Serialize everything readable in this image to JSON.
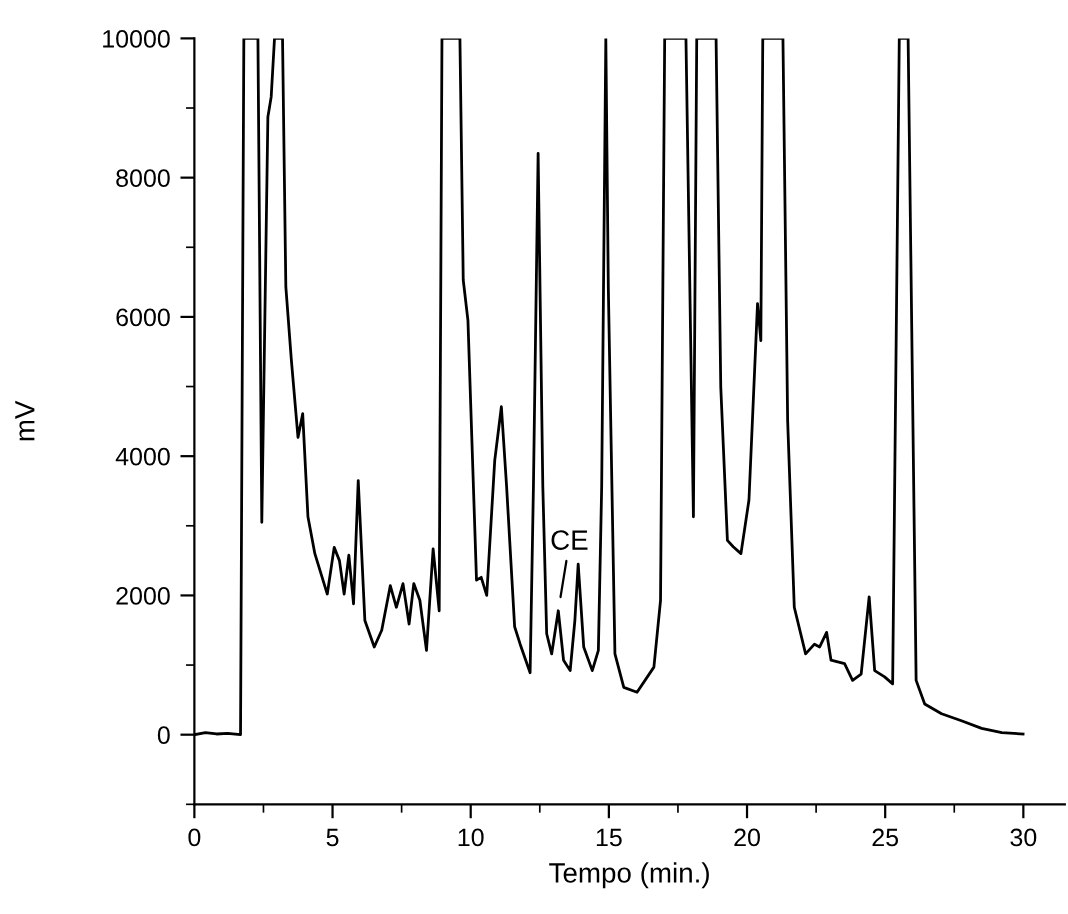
{
  "chart_data": {
    "type": "line",
    "xlabel": "Tempo (min.)",
    "ylabel": "mV",
    "xlim": [
      0,
      31.5
    ],
    "ylim": [
      -1000,
      10000
    ],
    "xticks": [
      0,
      {
        "value": 2.5,
        "label": null
      },
      5,
      {
        "value": 7.5,
        "label": null
      },
      10,
      {
        "value": 12.5,
        "label": null
      },
      15,
      {
        "value": 17.5,
        "label": null
      },
      20,
      {
        "value": 22.5,
        "label": null
      },
      25,
      {
        "value": 27.5,
        "label": null
      },
      30
    ],
    "yticks": [
      {
        "value": -1000,
        "label": null
      },
      0,
      {
        "value": 1000,
        "label": null
      },
      2000,
      {
        "value": 3000,
        "label": null
      },
      4000,
      {
        "value": 5000,
        "label": null
      },
      6000,
      {
        "value": 7000,
        "label": null
      },
      8000,
      {
        "value": 9000,
        "label": null
      },
      10000
    ],
    "grid": false,
    "legend": false,
    "marker": "none",
    "line_style": "solid",
    "annotations": [
      {
        "text": "CE",
        "x": 13.17,
        "y": 1780
      }
    ],
    "series": [
      {
        "color": "#000000",
        "x": [
          0,
          0.4,
          0.8,
          1.2,
          1.67,
          1.79,
          2.3,
          2.44,
          2.66,
          2.78,
          2.9,
          3.19,
          3.31,
          3.51,
          3.75,
          3.92,
          4.11,
          4.36,
          4.81,
          5.06,
          5.25,
          5.42,
          5.59,
          5.76,
          5.93,
          6.17,
          6.51,
          6.78,
          7.09,
          7.31,
          7.55,
          7.77,
          7.94,
          8.16,
          8.4,
          8.64,
          8.86,
          8.96,
          9.61,
          9.73,
          9.9,
          10.21,
          10.38,
          10.58,
          10.87,
          11.11,
          11.3,
          11.59,
          11.79,
          12.15,
          12.27,
          12.44,
          12.61,
          12.75,
          12.93,
          13.17,
          13.36,
          13.6,
          13.77,
          13.89,
          14.09,
          14.4,
          14.62,
          14.74,
          14.89,
          14.98,
          15.22,
          15.54,
          16.02,
          16.63,
          16.87,
          17.02,
          17.79,
          18.06,
          18.18,
          18.88,
          19.05,
          19.29,
          19.5,
          19.78,
          20.07,
          20.38,
          20.5,
          20.57,
          21.3,
          21.47,
          21.71,
          22.12,
          22.44,
          22.63,
          22.88,
          23.04,
          23.53,
          23.82,
          24.13,
          24.42,
          24.62,
          24.98,
          25.27,
          25.51,
          25.83,
          26.12,
          26.43,
          27.04,
          27.76,
          28.49,
          29.22,
          29.99
        ],
        "values": [
          0,
          30,
          10,
          20,
          0,
          10000,
          10000,
          3050,
          8870,
          9160,
          10000,
          10000,
          6430,
          5380,
          4270,
          4610,
          3130,
          2600,
          2020,
          2690,
          2500,
          2020,
          2580,
          1880,
          3650,
          1640,
          1260,
          1500,
          2140,
          1830,
          2170,
          1590,
          2170,
          1930,
          1210,
          2670,
          1780,
          10000,
          10000,
          6530,
          5950,
          2220,
          2260,
          2000,
          3940,
          4710,
          3560,
          1550,
          1300,
          890,
          3560,
          8350,
          3560,
          1450,
          1160,
          1780,
          1070,
          920,
          1640,
          2450,
          1260,
          920,
          1210,
          3560,
          10000,
          6430,
          1160,
          680,
          610,
          970,
          1930,
          10000,
          10000,
          3130,
          10000,
          10000,
          4990,
          2790,
          2700,
          2600,
          3370,
          6190,
          5660,
          10000,
          10000,
          4510,
          1830,
          1160,
          1300,
          1260,
          1470,
          1070,
          1020,
          780,
          870,
          1980,
          920,
          830,
          730,
          10000,
          10000,
          780,
          440,
          300,
          200,
          90,
          30,
          10
        ]
      }
    ]
  }
}
